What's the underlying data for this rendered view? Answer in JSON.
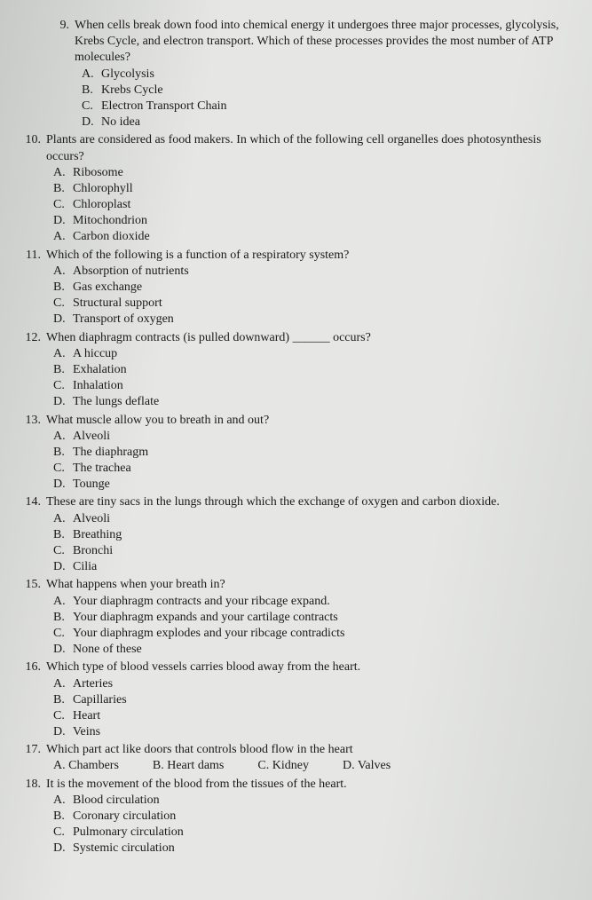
{
  "questions": [
    {
      "num": "9.",
      "text": "When cells break down food into chemical energy it undergoes three major processes, glycolysis, Krebs Cycle, and electron transport. Which of these processes provides the most number of ATP molecules?",
      "options": [
        {
          "letter": "A.",
          "text": "Glycolysis"
        },
        {
          "letter": "B.",
          "text": "Krebs Cycle"
        },
        {
          "letter": "C.",
          "text": "Electron Transport Chain"
        },
        {
          "letter": "D.",
          "text": "No idea"
        }
      ],
      "inline": false,
      "indentClass": "indent-9"
    },
    {
      "num": "10.",
      "text": "Plants are considered as food makers. In which of the following cell organelles does photosynthesis occurs?",
      "options": [
        {
          "letter": "A.",
          "text": "Ribosome"
        },
        {
          "letter": "B.",
          "text": "Chlorophyll"
        },
        {
          "letter": "C.",
          "text": "Chloroplast"
        },
        {
          "letter": "D.",
          "text": "Mitochondrion"
        },
        {
          "letter": "A.",
          "text": "Carbon dioxide"
        }
      ],
      "inline": false
    },
    {
      "num": "11.",
      "text": "Which of the following is a function of a respiratory system?",
      "options": [
        {
          "letter": "A.",
          "text": "Absorption of nutrients"
        },
        {
          "letter": "B.",
          "text": "Gas exchange"
        },
        {
          "letter": "C.",
          "text": "Structural support"
        },
        {
          "letter": "D.",
          "text": "Transport of oxygen"
        }
      ],
      "inline": false
    },
    {
      "num": "12.",
      "text": "When diaphragm contracts (is pulled downward) ______ occurs?",
      "options": [
        {
          "letter": "A.",
          "text": "A hiccup"
        },
        {
          "letter": "B.",
          "text": "Exhalation"
        },
        {
          "letter": "C.",
          "text": "Inhalation"
        },
        {
          "letter": "D.",
          "text": "The lungs deflate"
        }
      ],
      "inline": false
    },
    {
      "num": "13.",
      "text": "What muscle allow you to breath in and out?",
      "options": [
        {
          "letter": "A.",
          "text": "Alveoli"
        },
        {
          "letter": "B.",
          "text": "The diaphragm"
        },
        {
          "letter": "C.",
          "text": "The trachea"
        },
        {
          "letter": "D.",
          "text": "Tounge"
        }
      ],
      "inline": false
    },
    {
      "num": "14.",
      "text": "These are tiny sacs in the lungs through which the exchange of oxygen and carbon dioxide.",
      "options": [
        {
          "letter": "A.",
          "text": "Alveoli"
        },
        {
          "letter": "B.",
          "text": "Breathing"
        },
        {
          "letter": "C.",
          "text": "Bronchi"
        },
        {
          "letter": "D.",
          "text": "Cilia"
        }
      ],
      "inline": false
    },
    {
      "num": "15.",
      "text": "What happens when your breath in?",
      "options": [
        {
          "letter": "A.",
          "text": "Your diaphragm contracts and your ribcage expand."
        },
        {
          "letter": "B.",
          "text": "Your diaphragm expands and your cartilage contracts"
        },
        {
          "letter": "C.",
          "text": "Your diaphragm explodes and your ribcage contradicts"
        },
        {
          "letter": "D.",
          "text": "None of these"
        }
      ],
      "inline": false
    },
    {
      "num": "16.",
      "text": "Which type of blood vessels carries blood away from the heart.",
      "options": [
        {
          "letter": "A.",
          "text": "Arteries"
        },
        {
          "letter": "B.",
          "text": "Capillaries"
        },
        {
          "letter": "C.",
          "text": "Heart"
        },
        {
          "letter": "D.",
          "text": "Veins"
        }
      ],
      "inline": false
    },
    {
      "num": "17.",
      "text": "Which part act like doors that controls blood flow in the heart",
      "options": [
        {
          "letter": "A.",
          "text": "Chambers"
        },
        {
          "letter": "B.",
          "text": "Heart dams"
        },
        {
          "letter": "C.",
          "text": "Kidney"
        },
        {
          "letter": "D.",
          "text": "Valves"
        }
      ],
      "inline": true
    },
    {
      "num": "18.",
      "text": "It is the movement of the blood from the tissues of the heart.",
      "options": [
        {
          "letter": "A.",
          "text": "Blood circulation"
        },
        {
          "letter": "B.",
          "text": "Coronary circulation"
        },
        {
          "letter": "C.",
          "text": "Pulmonary circulation"
        },
        {
          "letter": "D.",
          "text": "Systemic circulation"
        }
      ],
      "inline": false
    }
  ]
}
